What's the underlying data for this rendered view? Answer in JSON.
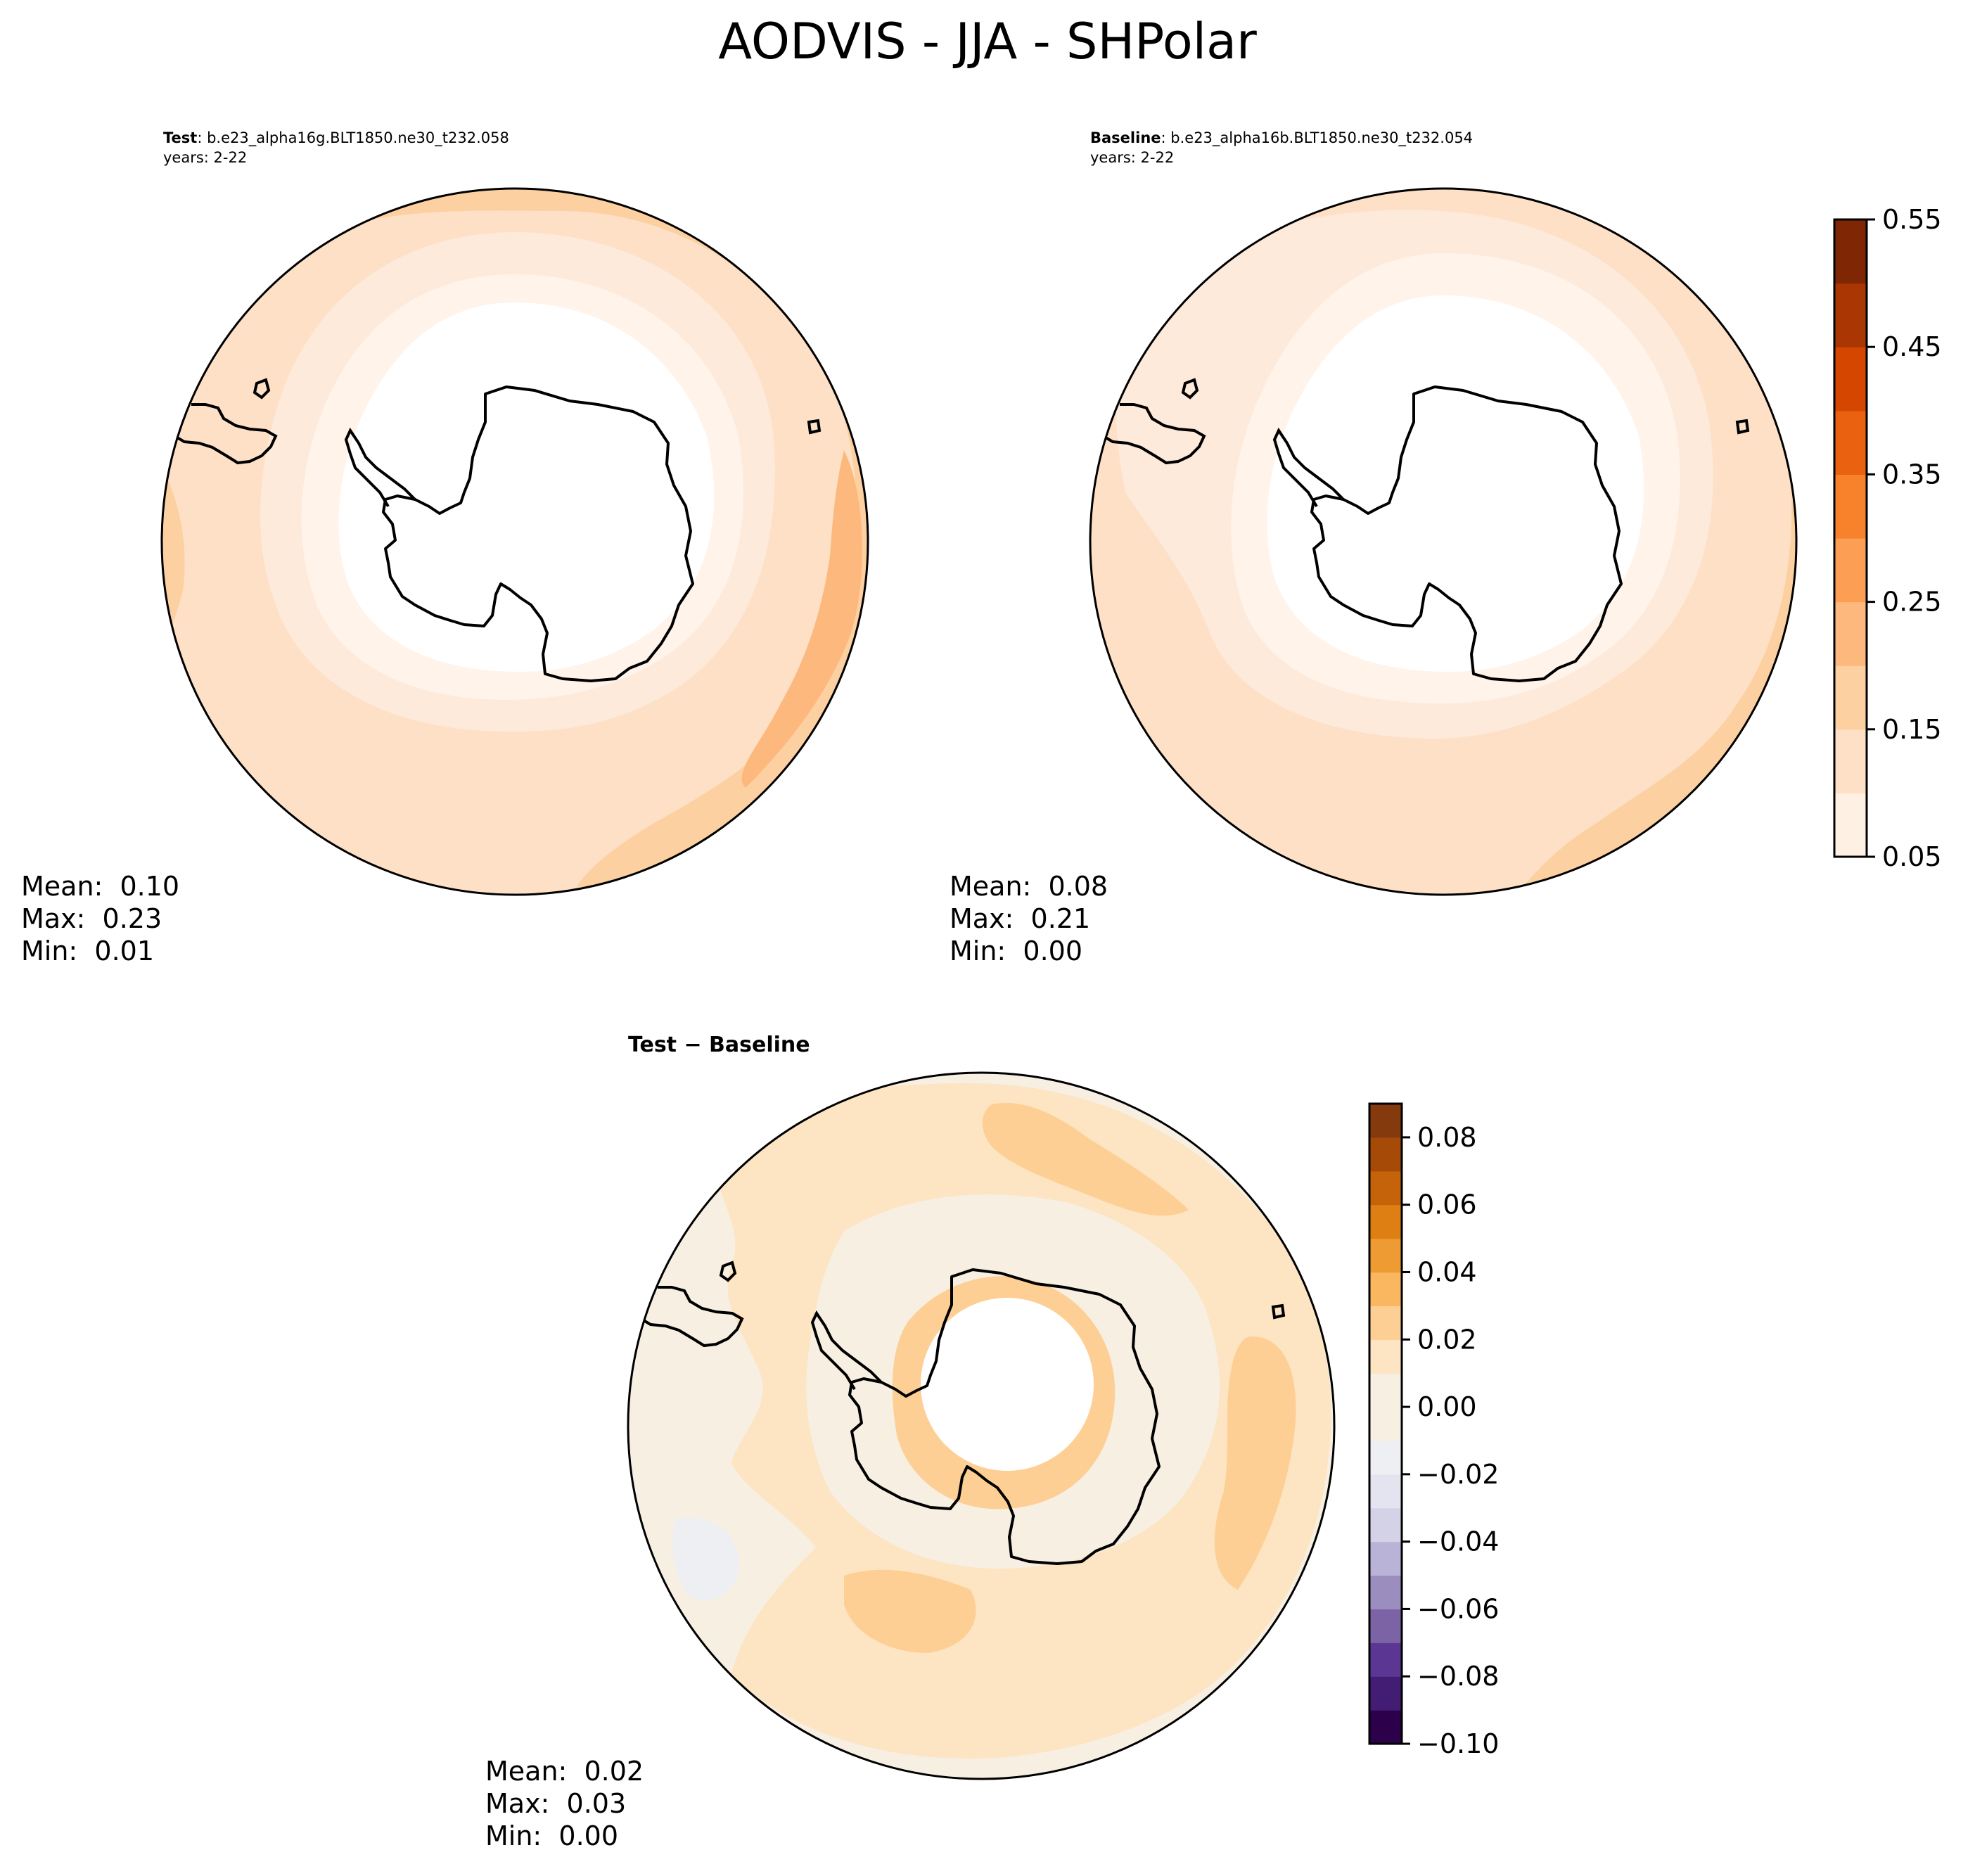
{
  "figure": {
    "suptitle": "AODVIS - JJA - SHPolar"
  },
  "panels": {
    "test": {
      "label_bold": "Test",
      "label_rest": ": b.e23_alpha16g.BLT1850.ne30_t232.058",
      "years": "years: 2-22",
      "mean": "Mean:  0.10",
      "max": "Max:  0.23",
      "min": "Min:  0.01"
    },
    "baseline": {
      "label_bold": "Baseline",
      "label_rest": ": b.e23_alpha16b.BLT1850.ne30_t232.054",
      "years": "years: 2-22",
      "mean": "Mean:  0.08",
      "max": "Max:  0.21",
      "min": "Min:  0.00"
    },
    "diff": {
      "title": "Test − Baseline",
      "mean": "Mean:  0.02",
      "max": "Max:  0.03",
      "min": "Min:  0.00"
    }
  },
  "chart_data": [
    {
      "type": "heatmap",
      "panel": "Test",
      "projection": "south polar stereographic",
      "stats": {
        "mean": 0.1,
        "max": 0.23,
        "min": 0.01
      },
      "colormap": "Oranges",
      "colorbar": {
        "levels": [
          0.05,
          0.1,
          0.15,
          0.2,
          0.25,
          0.3,
          0.35,
          0.4,
          0.45,
          0.5,
          0.55
        ],
        "tick_labels": [
          "0.05",
          "0.15",
          "0.25",
          "0.35",
          "0.45",
          "0.55"
        ]
      }
    },
    {
      "type": "heatmap",
      "panel": "Baseline",
      "projection": "south polar stereographic",
      "stats": {
        "mean": 0.08,
        "max": 0.21,
        "min": 0.0
      },
      "colormap": "Oranges",
      "colorbar": {
        "levels": [
          0.05,
          0.1,
          0.15,
          0.2,
          0.25,
          0.3,
          0.35,
          0.4,
          0.45,
          0.5,
          0.55
        ],
        "tick_labels": [
          "0.05",
          "0.15",
          "0.25",
          "0.35",
          "0.45",
          "0.55"
        ]
      }
    },
    {
      "type": "heatmap",
      "panel": "Test − Baseline",
      "projection": "south polar stereographic",
      "stats": {
        "mean": 0.02,
        "max": 0.03,
        "min": 0.0
      },
      "colormap": "PuOr_r",
      "colorbar": {
        "levels": [
          -0.1,
          -0.09,
          -0.08,
          -0.07,
          -0.06,
          -0.05,
          -0.04,
          -0.03,
          -0.02,
          -0.01,
          0.0,
          0.01,
          0.02,
          0.03,
          0.04,
          0.05,
          0.06,
          0.07,
          0.08,
          0.09
        ],
        "tick_labels": [
          "−0.10",
          "−0.08",
          "−0.06",
          "−0.04",
          "−0.02",
          "0.00",
          "0.02",
          "0.04",
          "0.06",
          "0.08"
        ]
      }
    }
  ],
  "colors": {
    "oranges": [
      "#fff0e4",
      "#fde0c6",
      "#fdd0a2",
      "#fdb97d",
      "#fd9e55",
      "#f8822b",
      "#ea6110",
      "#d54601",
      "#aa3703",
      "#7f2704"
    ],
    "puor": [
      "#2d004b",
      "#431c74",
      "#5b3793",
      "#7b63a6",
      "#9b8ebf",
      "#b8b3d7",
      "#d3d2e7",
      "#e4e4f0",
      "#eeeff3",
      "#f7efe2",
      "#fde4c2",
      "#fdcf94",
      "#fbb75f",
      "#ef9b33",
      "#de7f13",
      "#c46309",
      "#a54a07",
      "#843a0c"
    ]
  }
}
